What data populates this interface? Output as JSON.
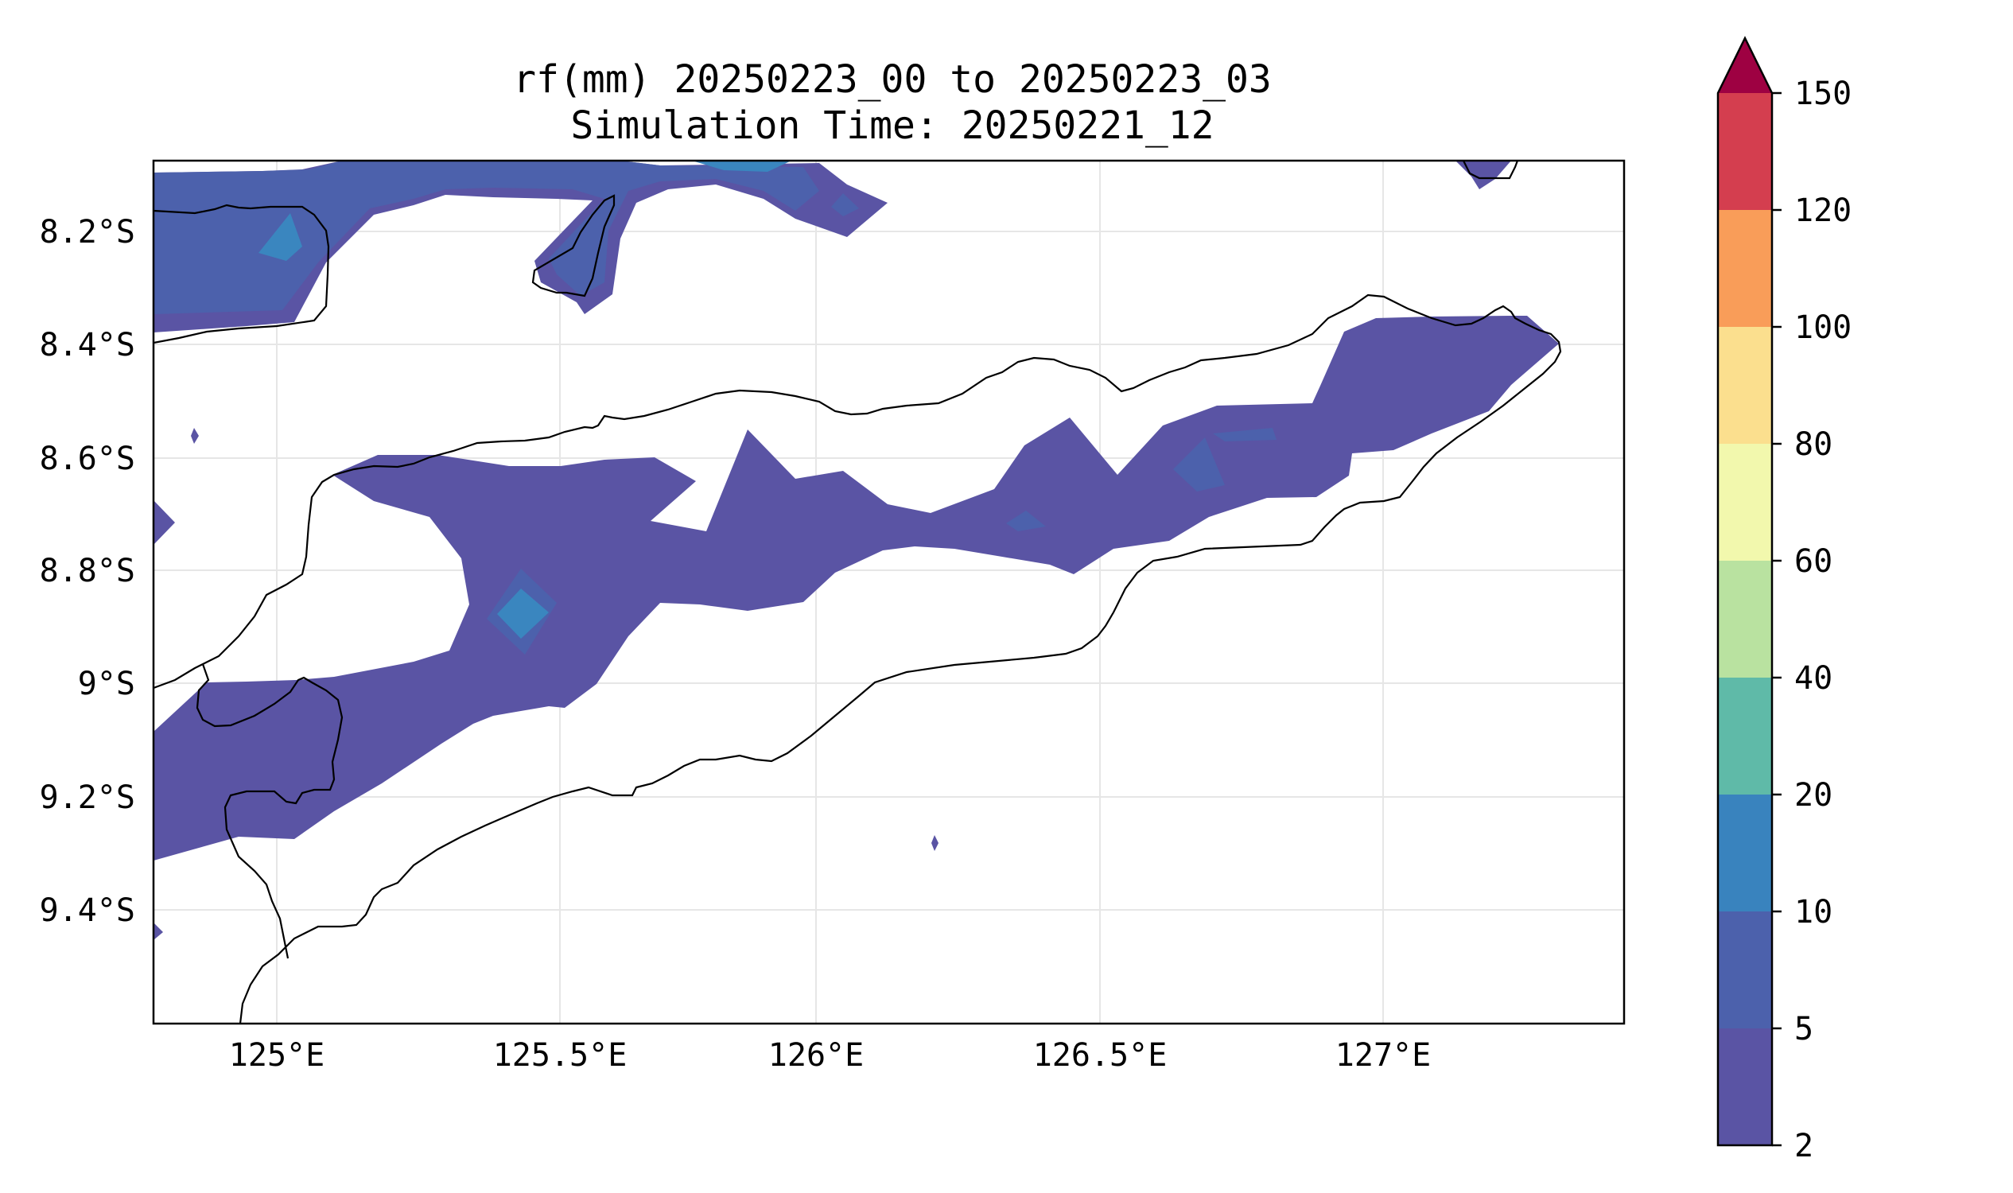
{
  "title": {
    "line1": "rf(mm) 20250223_00 to 20250223_03",
    "line2": "Simulation Time: 20250221_12"
  },
  "map": {
    "lon_range": [
      124.83,
      127.42
    ],
    "lat_range": [
      -9.6,
      -8.08
    ],
    "x_ticks": [
      {
        "value": 125.0,
        "label": "125°E"
      },
      {
        "value": 125.5,
        "label": "125.5°E"
      },
      {
        "value": 126.0,
        "label": "126°E"
      },
      {
        "value": 126.5,
        "label": "126.5°E"
      },
      {
        "value": 127.0,
        "label": "127°E"
      }
    ],
    "y_ticks": [
      {
        "value": -8.2,
        "label": "8.2°S"
      },
      {
        "value": -8.4,
        "label": "8.4°S"
      },
      {
        "value": -8.6,
        "label": "8.6°S"
      },
      {
        "value": -8.8,
        "label": "8.8°S"
      },
      {
        "value": -9.0,
        "label": "9°S"
      },
      {
        "value": -9.2,
        "label": "9.2°S"
      },
      {
        "value": -9.4,
        "label": "9.4°S"
      }
    ]
  },
  "colorbar": {
    "levels": [
      "2",
      "5",
      "10",
      "20",
      "40",
      "60",
      "80",
      "100",
      "120",
      "150"
    ],
    "colors": [
      "#5a54a4",
      "#4c61ac",
      "#3983be",
      "#5fbaa8",
      "#b9e2a0",
      "#f2f8ad",
      "#fbdf8e",
      "#f99d59",
      "#d43e4f",
      "#9e0142"
    ],
    "extend": "max"
  },
  "colors": {
    "rain_2_5": "#5a54a4",
    "rain_5_10": "#4c61ac",
    "rain_10_20": "#3a86bf",
    "coastline": "#000000",
    "grid": "#e6e6e6"
  }
}
